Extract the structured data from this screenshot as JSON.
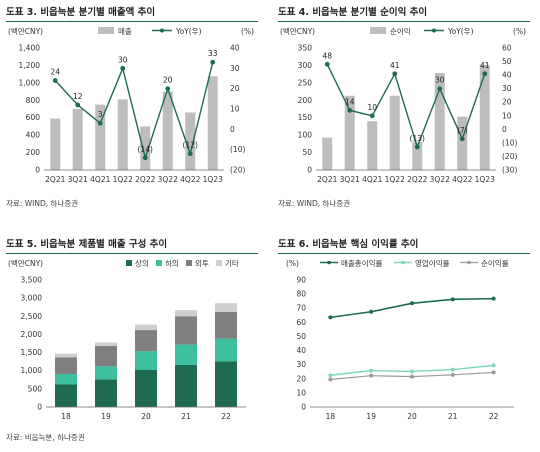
{
  "panels": [
    {
      "title": "도표 3. 비읍늑분 분기별 매출액 추이",
      "source": "자료: WIND, 하나증권"
    },
    {
      "title": "도표 4. 비읍늑분 분기별 순이익 추이",
      "source": "자료: WIND, 하나증권"
    },
    {
      "title": "도표 5. 비읍늑분 제품별 매출 구성 추이",
      "source": "자료: 비읍늑분, 하나증권"
    },
    {
      "title": "도표 6. 비읍늑분 핵심 이익률 추이",
      "source": "자료: 비읍늑분, 하나증권"
    }
  ],
  "chart_data": [
    {
      "type": "bar",
      "categories": [
        "2Q21",
        "3Q21",
        "4Q21",
        "1Q22",
        "2Q22",
        "3Q22",
        "4Q22",
        "1Q23"
      ],
      "series": [
        {
          "name": "매출",
          "axis": "left",
          "kind": "bar",
          "values": [
            590,
            700,
            750,
            810,
            500,
            900,
            660,
            1075
          ]
        },
        {
          "name": "YoY(우)",
          "axis": "right",
          "kind": "line",
          "values": [
            24,
            12,
            3,
            30,
            -14,
            20,
            -12,
            33
          ],
          "labels": [
            "24",
            "12",
            "3",
            "30",
            "(14)",
            "20",
            "(12)",
            "33"
          ]
        }
      ],
      "ylabel": "(백만CNY)",
      "y2label": "(%)",
      "ylim": [
        0,
        1400
      ],
      "yticks": [
        "0",
        "200",
        "400",
        "600",
        "800",
        "1,000",
        "1,200",
        "1,400"
      ],
      "y2lim": [
        -20,
        40
      ],
      "y2ticks": [
        "(20)",
        "(10)",
        "0",
        "10",
        "20",
        "30",
        "40"
      ],
      "colors": {
        "bar": "#bdbdbd",
        "line": "#1f6b52"
      }
    },
    {
      "type": "bar",
      "categories": [
        "2Q21",
        "3Q21",
        "4Q21",
        "1Q22",
        "2Q22",
        "3Q22",
        "4Q22",
        "1Q23"
      ],
      "series": [
        {
          "name": "순이익",
          "axis": "left",
          "kind": "bar",
          "values": [
            93,
            213,
            140,
            213,
            80,
            278,
            153,
            302
          ]
        },
        {
          "name": "YoY(우)",
          "axis": "right",
          "kind": "line",
          "values": [
            48,
            14,
            10,
            41,
            -13,
            30,
            -7,
            41
          ],
          "labels": [
            "48",
            "14",
            "10",
            "41",
            "(13)",
            "30",
            "(7)",
            "41"
          ]
        }
      ],
      "ylabel": "(백만CNY)",
      "y2label": "(%)",
      "ylim": [
        0,
        350
      ],
      "yticks": [
        "0",
        "50",
        "100",
        "150",
        "200",
        "250",
        "300",
        "350"
      ],
      "y2lim": [
        -30,
        60
      ],
      "y2ticks": [
        "(30)",
        "(20)",
        "(10)",
        "0",
        "10",
        "20",
        "30",
        "40",
        "50",
        "60"
      ],
      "colors": {
        "bar": "#bdbdbd",
        "line": "#1f6b52"
      }
    },
    {
      "type": "bar",
      "stacked": true,
      "categories": [
        "18",
        "19",
        "20",
        "21",
        "22"
      ],
      "series": [
        {
          "name": "상의",
          "values": [
            620,
            760,
            1020,
            1160,
            1260
          ],
          "color": "#1f6b52"
        },
        {
          "name": "하의",
          "values": [
            290,
            360,
            520,
            560,
            620
          ],
          "color": "#3dbfa0"
        },
        {
          "name": "외투",
          "values": [
            460,
            560,
            580,
            780,
            740
          ],
          "color": "#7f7f7f"
        },
        {
          "name": "기타",
          "values": [
            100,
            100,
            150,
            170,
            240
          ],
          "color": "#cfcfcf"
        }
      ],
      "ylabel": "(백만CNY)",
      "ylim": [
        0,
        3500
      ],
      "yticks": [
        "0",
        "500",
        "1,000",
        "1,500",
        "2,000",
        "2,500",
        "3,000",
        "3,500"
      ]
    },
    {
      "type": "line",
      "categories": [
        "18",
        "19",
        "20",
        "21",
        "22"
      ],
      "series": [
        {
          "name": "매출총이익률",
          "values": [
            63.5,
            67.5,
            73.5,
            76.3,
            76.8
          ],
          "color": "#1f6b52",
          "width": 1.6
        },
        {
          "name": "영업이익률",
          "values": [
            22.5,
            25.8,
            25.2,
            26.5,
            29.5
          ],
          "color": "#7fd6c2",
          "width": 1.4
        },
        {
          "name": "순이익률",
          "values": [
            19.5,
            22.2,
            21.5,
            22.8,
            24.5
          ],
          "color": "#9a9a9a",
          "width": 1.2
        }
      ],
      "ylabel": "(%)",
      "ylim": [
        0,
        90
      ],
      "yticks": [
        "0",
        "10",
        "20",
        "30",
        "40",
        "50",
        "60",
        "70",
        "80",
        "90"
      ]
    }
  ]
}
